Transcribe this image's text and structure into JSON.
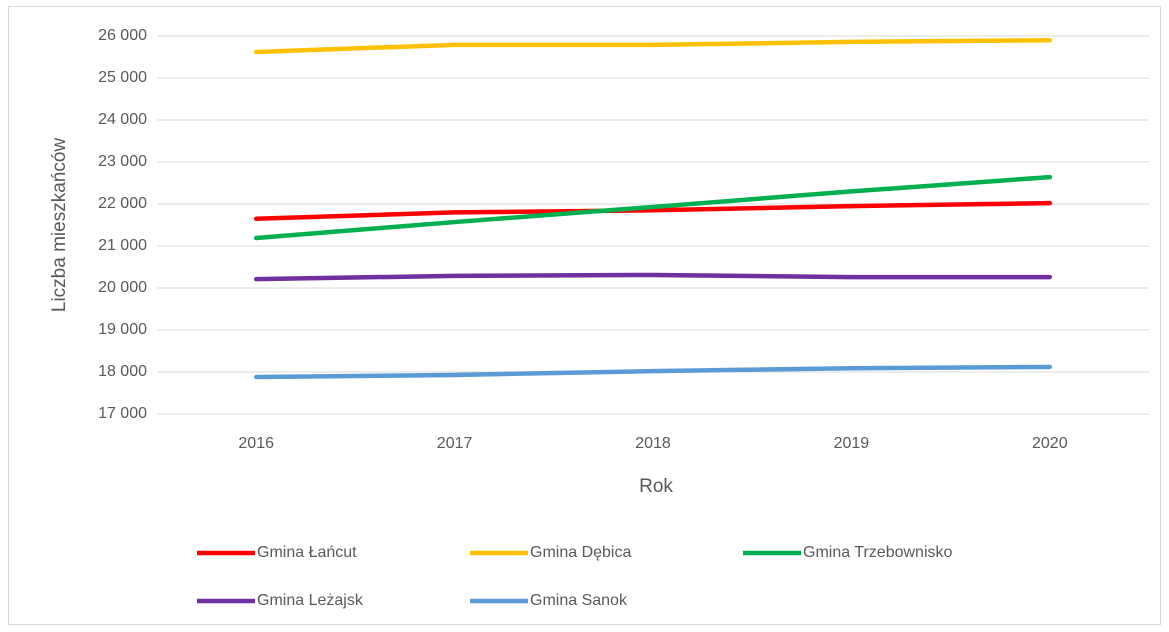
{
  "chart_data": {
    "type": "line",
    "x_label": "Rok",
    "y_label": "Liczba mieszkańców",
    "categories": [
      "2016",
      "2017",
      "2018",
      "2019",
      "2020"
    ],
    "series": [
      {
        "name": "Gmina Łańcut",
        "color": "#ff0000",
        "values": [
          21650,
          21800,
          21850,
          21950,
          22020
        ]
      },
      {
        "name": "Gmina Dębica",
        "color": "#ffc000",
        "values": [
          25620,
          25790,
          25790,
          25860,
          25900
        ]
      },
      {
        "name": "Gmina Trzebownisko",
        "color": "#00b050",
        "values": [
          21190,
          21570,
          21930,
          22300,
          22640
        ]
      },
      {
        "name": "Gmina Leżajsk",
        "color": "#7030a0",
        "values": [
          20210,
          20290,
          20310,
          20260,
          20260
        ]
      },
      {
        "name": "Gmina Sanok",
        "color": "#5b9bd5",
        "values": [
          17880,
          17930,
          18020,
          18090,
          18120
        ]
      }
    ],
    "ylim": [
      17000,
      26000
    ],
    "yticks": [
      {
        "value": 17000,
        "label": "17 000"
      },
      {
        "value": 18000,
        "label": "18 000"
      },
      {
        "value": 19000,
        "label": "19 000"
      },
      {
        "value": 20000,
        "label": "20 000"
      },
      {
        "value": 21000,
        "label": "21 000"
      },
      {
        "value": 22000,
        "label": "22 000"
      },
      {
        "value": 23000,
        "label": "23 000"
      },
      {
        "value": 24000,
        "label": "24 000"
      },
      {
        "value": 25000,
        "label": "25 000"
      },
      {
        "value": 26000,
        "label": "26 000"
      }
    ],
    "grid": true,
    "legend": "bottom"
  }
}
